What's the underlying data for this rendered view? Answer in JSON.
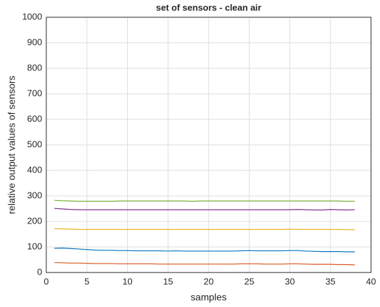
{
  "chart_data": {
    "type": "line",
    "title": "set of sensors - clean air",
    "xlabel": "samples",
    "ylabel": "relative output values of sensors",
    "x": [
      1,
      2,
      3,
      4,
      5,
      6,
      7,
      8,
      9,
      10,
      11,
      12,
      13,
      14,
      15,
      16,
      17,
      18,
      19,
      20,
      21,
      22,
      23,
      24,
      25,
      26,
      27,
      28,
      29,
      30,
      31,
      32,
      33,
      34,
      35,
      36,
      37,
      38
    ],
    "series": [
      {
        "color": "#0072BD",
        "values": [
          95,
          96,
          94,
          92,
          90,
          88,
          87,
          87,
          86,
          86,
          85,
          85,
          85,
          85,
          84,
          85,
          84,
          84,
          84,
          84,
          84,
          84,
          84,
          85,
          86,
          85,
          85,
          85,
          85,
          86,
          86,
          84,
          83,
          82,
          82,
          82,
          81,
          81
        ]
      },
      {
        "color": "#D95319",
        "values": [
          39,
          38,
          37,
          37,
          36,
          35,
          35,
          35,
          34,
          34,
          34,
          34,
          34,
          33,
          33,
          33,
          33,
          33,
          33,
          33,
          33,
          33,
          33,
          34,
          34,
          34,
          33,
          33,
          33,
          34,
          34,
          33,
          32,
          32,
          32,
          31,
          31,
          30
        ]
      },
      {
        "color": "#EDB120",
        "values": [
          172,
          171,
          170,
          169,
          169,
          169,
          169,
          169,
          169,
          169,
          169,
          169,
          169,
          169,
          169,
          169,
          169,
          169,
          169,
          169,
          169,
          169,
          169,
          169,
          169,
          169,
          169,
          169,
          169,
          170,
          169,
          169,
          169,
          169,
          169,
          169,
          168,
          168
        ]
      },
      {
        "color": "#7E2F8E",
        "values": [
          251,
          249,
          247,
          246,
          246,
          246,
          246,
          246,
          246,
          246,
          246,
          246,
          246,
          246,
          246,
          246,
          246,
          246,
          246,
          246,
          246,
          246,
          246,
          246,
          246,
          246,
          246,
          246,
          246,
          246,
          247,
          246,
          245,
          245,
          247,
          246,
          245,
          246
        ]
      },
      {
        "color": "#77AC30",
        "values": [
          283,
          281,
          280,
          279,
          279,
          279,
          279,
          279,
          280,
          280,
          280,
          280,
          280,
          280,
          280,
          280,
          280,
          279,
          280,
          280,
          280,
          280,
          280,
          280,
          280,
          280,
          280,
          280,
          280,
          280,
          280,
          280,
          280,
          280,
          280,
          280,
          279,
          279
        ]
      }
    ],
    "xlim": [
      0,
      40
    ],
    "xticks": [
      0,
      5,
      10,
      15,
      20,
      25,
      30,
      35,
      40
    ],
    "ylim": [
      0,
      1000
    ],
    "yticks": [
      0,
      100,
      200,
      300,
      400,
      500,
      600,
      700,
      800,
      900,
      1000
    ],
    "grid": true
  }
}
